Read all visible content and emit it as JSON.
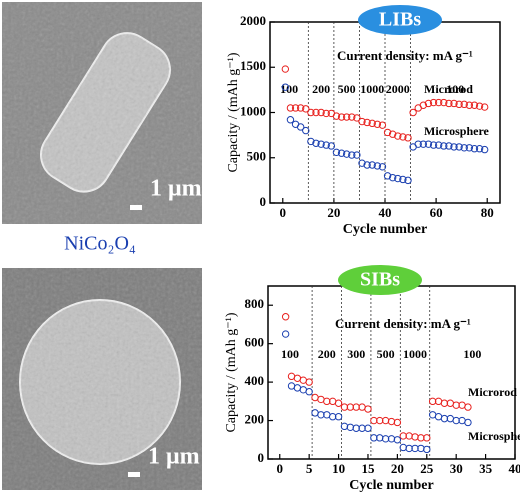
{
  "figure": {
    "label": "NiCo₂O₄",
    "scale_bars": [
      "1 μm",
      "1 μm"
    ]
  },
  "chart_data": [
    {
      "type": "scatter",
      "title": "LIBs",
      "title_color": "#2a8fe0",
      "subtitle": "Current density: mA g⁻¹",
      "x_label": "Cycle number",
      "y_label": "Capacity / (mAh g⁻¹)",
      "xlim": [
        -5,
        85
      ],
      "xticks": [
        0,
        20,
        40,
        60,
        80
      ],
      "ylim": [
        0,
        2000
      ],
      "yticks": [
        0,
        500,
        1000,
        1500,
        2000
      ],
      "dividers": [
        10,
        20,
        30,
        40,
        50
      ],
      "rate_labels": [
        "100",
        "200",
        "500",
        "1000",
        "2000",
        "100"
      ],
      "x": [
        1,
        3,
        5,
        7,
        9,
        11,
        13,
        15,
        17,
        19,
        21,
        23,
        25,
        27,
        29,
        31,
        33,
        35,
        37,
        39,
        41,
        43,
        45,
        47,
        49,
        51,
        53,
        55,
        57,
        59,
        61,
        63,
        65,
        67,
        69,
        71,
        73,
        75,
        77,
        79
      ],
      "series": [
        {
          "name": "Microrod",
          "color": "#e8221f",
          "values": [
            1480,
            1050,
            1050,
            1050,
            1040,
            1000,
            1000,
            1000,
            990,
            990,
            960,
            950,
            950,
            950,
            940,
            900,
            890,
            880,
            870,
            860,
            780,
            760,
            740,
            730,
            720,
            1000,
            1050,
            1080,
            1100,
            1110,
            1110,
            1110,
            1100,
            1100,
            1090,
            1090,
            1080,
            1080,
            1070,
            1060
          ]
        },
        {
          "name": "Microsphere",
          "color": "#1a3fb0",
          "values": [
            1280,
            920,
            870,
            840,
            800,
            680,
            660,
            650,
            640,
            630,
            560,
            550,
            540,
            530,
            530,
            440,
            420,
            420,
            410,
            400,
            300,
            280,
            270,
            260,
            250,
            620,
            650,
            650,
            650,
            640,
            640,
            630,
            630,
            620,
            620,
            610,
            610,
            600,
            600,
            590
          ]
        }
      ]
    },
    {
      "type": "scatter",
      "title": "SIBs",
      "title_color": "#5fcf3a",
      "subtitle": "Current density: mA g⁻¹",
      "x_label": "Cycle number",
      "y_label": "Capacity / (mAh g⁻¹)",
      "xlim": [
        -2,
        40
      ],
      "xticks": [
        0,
        5,
        10,
        15,
        20,
        25,
        30,
        35,
        40
      ],
      "ylim": [
        0,
        900
      ],
      "yticks": [
        0,
        200,
        400,
        600,
        800
      ],
      "dividers": [
        5.5,
        10.5,
        15.5,
        20.5,
        25.5
      ],
      "rate_labels": [
        "100",
        "200",
        "300",
        "500",
        "1000",
        "100"
      ],
      "x": [
        1,
        2,
        3,
        4,
        5,
        6,
        7,
        8,
        9,
        10,
        11,
        12,
        13,
        14,
        15,
        16,
        17,
        18,
        19,
        20,
        21,
        22,
        23,
        24,
        25,
        26,
        27,
        28,
        29,
        30,
        31,
        32
      ],
      "series": [
        {
          "name": "Microrod",
          "color": "#e8221f",
          "values": [
            740,
            430,
            420,
            410,
            400,
            320,
            310,
            300,
            300,
            290,
            270,
            270,
            270,
            270,
            260,
            200,
            200,
            200,
            195,
            190,
            120,
            120,
            115,
            110,
            110,
            300,
            300,
            290,
            290,
            280,
            280,
            270
          ]
        },
        {
          "name": "Microsphere",
          "color": "#1a3fb0",
          "values": [
            650,
            380,
            370,
            360,
            350,
            240,
            230,
            230,
            220,
            220,
            170,
            165,
            160,
            160,
            160,
            110,
            110,
            105,
            105,
            100,
            60,
            55,
            55,
            55,
            50,
            230,
            220,
            210,
            210,
            200,
            200,
            190
          ]
        }
      ]
    }
  ]
}
